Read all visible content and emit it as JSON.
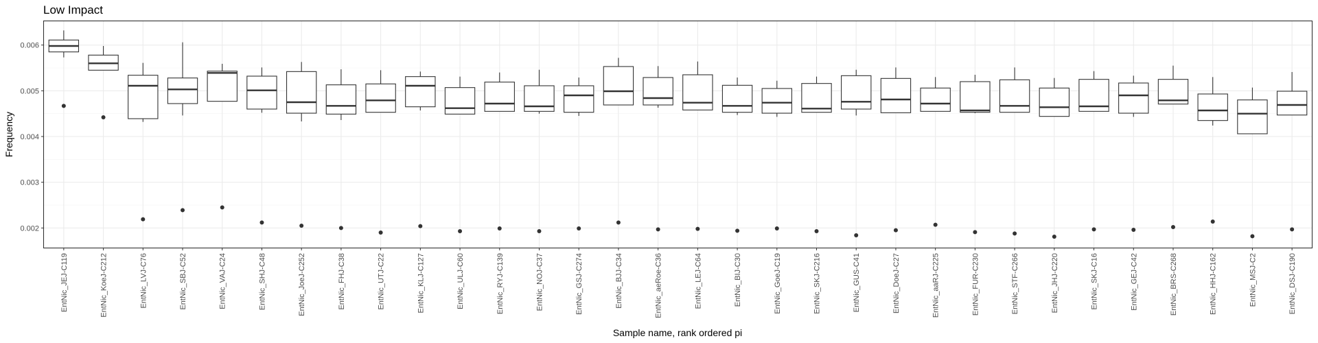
{
  "chart_data": {
    "type": "box",
    "title": "Low Impact",
    "xlabel": "Sample name, rank ordered pi",
    "ylabel": "Frequency",
    "ylim": [
      0.00157,
      0.00652
    ],
    "y_ticks": [
      0.002,
      0.003,
      0.004,
      0.005,
      0.006
    ],
    "y_tick_labels": [
      "0.002",
      "0.003",
      "0.004",
      "0.005",
      "0.006"
    ],
    "grid": true,
    "categories": [
      "EntNic_JEJ-C119",
      "EntNic_KoeJ-C212",
      "EntNic_LVJ-C76",
      "EntNic_SBJ-C52",
      "EntNic_VAJ-C24",
      "EntNic_SHJ-C48",
      "EntNic_JoeJ-C252",
      "EntNic_FHJ-C38",
      "EntNic_UTJ-C22",
      "EntNic_KLJ-C127",
      "EntNic_ULJ-C60",
      "EntNic_RYJ-C139",
      "EntNic_NOJ-C37",
      "EntNic_GSJ-C274",
      "EntNic_BJJ-C34",
      "EntNic_aeRoe-C36",
      "EntNic_LEJ-C64",
      "EntNic_BIJ-C30",
      "EntNic_GoeJ-C19",
      "EntNic_SKJ-C216",
      "EntNic_GUS-C41",
      "EntNic_DoeJ-C27",
      "EntNic_aaRJ-C225",
      "EntNic_FUR-C230",
      "EntNic_STF-C266",
      "EntNic_JHJ-C220",
      "EntNic_SKJ-C16",
      "EntNic_GEJ-C42",
      "EntNic_BRS-C268",
      "EntNic_HHJ-C162",
      "EntNic_MSJ-C2",
      "EntNic_DSJ-C190"
    ],
    "boxes": [
      {
        "whisker_low": 0.00573,
        "q1": 0.00585,
        "median": 0.00598,
        "q3": 0.00611,
        "whisker_high": 0.00632,
        "outliers": [
          0.00467
        ]
      },
      {
        "whisker_low": 0.00545,
        "q1": 0.00545,
        "median": 0.0056,
        "q3": 0.00578,
        "whisker_high": 0.00598,
        "outliers": [
          0.00442
        ]
      },
      {
        "whisker_low": 0.00432,
        "q1": 0.00439,
        "median": 0.00511,
        "q3": 0.00534,
        "whisker_high": 0.00561,
        "outliers": [
          0.00219
        ]
      },
      {
        "whisker_low": 0.00446,
        "q1": 0.00472,
        "median": 0.00503,
        "q3": 0.00528,
        "whisker_high": 0.00606,
        "outliers": [
          0.00239
        ]
      },
      {
        "whisker_low": 0.00477,
        "q1": 0.00477,
        "median": 0.00539,
        "q3": 0.00543,
        "whisker_high": 0.00559,
        "outliers": [
          0.00245
        ]
      },
      {
        "whisker_low": 0.00452,
        "q1": 0.0046,
        "median": 0.00501,
        "q3": 0.00532,
        "whisker_high": 0.00551,
        "outliers": [
          0.00212
        ]
      },
      {
        "whisker_low": 0.00433,
        "q1": 0.00451,
        "median": 0.00475,
        "q3": 0.00542,
        "whisker_high": 0.00563,
        "outliers": [
          0.00205
        ]
      },
      {
        "whisker_low": 0.00436,
        "q1": 0.00449,
        "median": 0.00467,
        "q3": 0.00513,
        "whisker_high": 0.00547,
        "outliers": [
          0.002
        ]
      },
      {
        "whisker_low": 0.00453,
        "q1": 0.00453,
        "median": 0.00479,
        "q3": 0.00515,
        "whisker_high": 0.00545,
        "outliers": [
          0.0019
        ]
      },
      {
        "whisker_low": 0.00457,
        "q1": 0.00465,
        "median": 0.00511,
        "q3": 0.00531,
        "whisker_high": 0.00542,
        "outliers": [
          0.00204
        ]
      },
      {
        "whisker_low": 0.00449,
        "q1": 0.00449,
        "median": 0.00462,
        "q3": 0.00507,
        "whisker_high": 0.00531,
        "outliers": [
          0.00193
        ]
      },
      {
        "whisker_low": 0.00455,
        "q1": 0.00455,
        "median": 0.00472,
        "q3": 0.00519,
        "whisker_high": 0.0054,
        "outliers": [
          0.00199
        ]
      },
      {
        "whisker_low": 0.0045,
        "q1": 0.00455,
        "median": 0.00466,
        "q3": 0.00511,
        "whisker_high": 0.00546,
        "outliers": [
          0.00193
        ]
      },
      {
        "whisker_low": 0.00445,
        "q1": 0.00453,
        "median": 0.0049,
        "q3": 0.00511,
        "whisker_high": 0.00529,
        "outliers": [
          0.00199
        ]
      },
      {
        "whisker_low": 0.00469,
        "q1": 0.00469,
        "median": 0.00499,
        "q3": 0.00553,
        "whisker_high": 0.00572,
        "outliers": [
          0.00212
        ]
      },
      {
        "whisker_low": 0.00463,
        "q1": 0.00469,
        "median": 0.00484,
        "q3": 0.00529,
        "whisker_high": 0.00554,
        "outliers": [
          0.00197
        ]
      },
      {
        "whisker_low": 0.00458,
        "q1": 0.00458,
        "median": 0.00474,
        "q3": 0.00535,
        "whisker_high": 0.00564,
        "outliers": [
          0.00198
        ]
      },
      {
        "whisker_low": 0.00447,
        "q1": 0.00453,
        "median": 0.00467,
        "q3": 0.00512,
        "whisker_high": 0.00529,
        "outliers": [
          0.00194
        ]
      },
      {
        "whisker_low": 0.00443,
        "q1": 0.00451,
        "median": 0.00474,
        "q3": 0.00505,
        "whisker_high": 0.00522,
        "outliers": [
          0.00199
        ]
      },
      {
        "whisker_low": 0.00453,
        "q1": 0.00453,
        "median": 0.00461,
        "q3": 0.00516,
        "whisker_high": 0.00531,
        "outliers": [
          0.00193
        ]
      },
      {
        "whisker_low": 0.00446,
        "q1": 0.0046,
        "median": 0.00476,
        "q3": 0.00533,
        "whisker_high": 0.00546,
        "outliers": [
          0.00184
        ]
      },
      {
        "whisker_low": 0.00452,
        "q1": 0.00452,
        "median": 0.00481,
        "q3": 0.00527,
        "whisker_high": 0.00551,
        "outliers": [
          0.00195
        ]
      },
      {
        "whisker_low": 0.00455,
        "q1": 0.00455,
        "median": 0.00472,
        "q3": 0.00506,
        "whisker_high": 0.0053,
        "outliers": [
          0.00207
        ]
      },
      {
        "whisker_low": 0.00451,
        "q1": 0.00453,
        "median": 0.00457,
        "q3": 0.0052,
        "whisker_high": 0.00535,
        "outliers": [
          0.00191
        ]
      },
      {
        "whisker_low": 0.00453,
        "q1": 0.00453,
        "median": 0.00467,
        "q3": 0.00524,
        "whisker_high": 0.00551,
        "outliers": [
          0.00188
        ]
      },
      {
        "whisker_low": 0.00444,
        "q1": 0.00444,
        "median": 0.00464,
        "q3": 0.00506,
        "whisker_high": 0.00528,
        "outliers": [
          0.00181
        ]
      },
      {
        "whisker_low": 0.00455,
        "q1": 0.00455,
        "median": 0.00466,
        "q3": 0.00525,
        "whisker_high": 0.00543,
        "outliers": [
          0.00197
        ]
      },
      {
        "whisker_low": 0.00443,
        "q1": 0.00451,
        "median": 0.0049,
        "q3": 0.00517,
        "whisker_high": 0.00533,
        "outliers": [
          0.00196
        ]
      },
      {
        "whisker_low": 0.00471,
        "q1": 0.00471,
        "median": 0.00479,
        "q3": 0.00525,
        "whisker_high": 0.00555,
        "outliers": [
          0.00202
        ]
      },
      {
        "whisker_low": 0.00424,
        "q1": 0.00435,
        "median": 0.00457,
        "q3": 0.00493,
        "whisker_high": 0.0053,
        "outliers": [
          0.00214
        ]
      },
      {
        "whisker_low": 0.00406,
        "q1": 0.00406,
        "median": 0.0045,
        "q3": 0.0048,
        "whisker_high": 0.00507,
        "outliers": [
          0.00182
        ]
      },
      {
        "whisker_low": 0.00447,
        "q1": 0.00447,
        "median": 0.00469,
        "q3": 0.00499,
        "whisker_high": 0.00541,
        "outliers": [
          0.00197
        ]
      }
    ]
  }
}
